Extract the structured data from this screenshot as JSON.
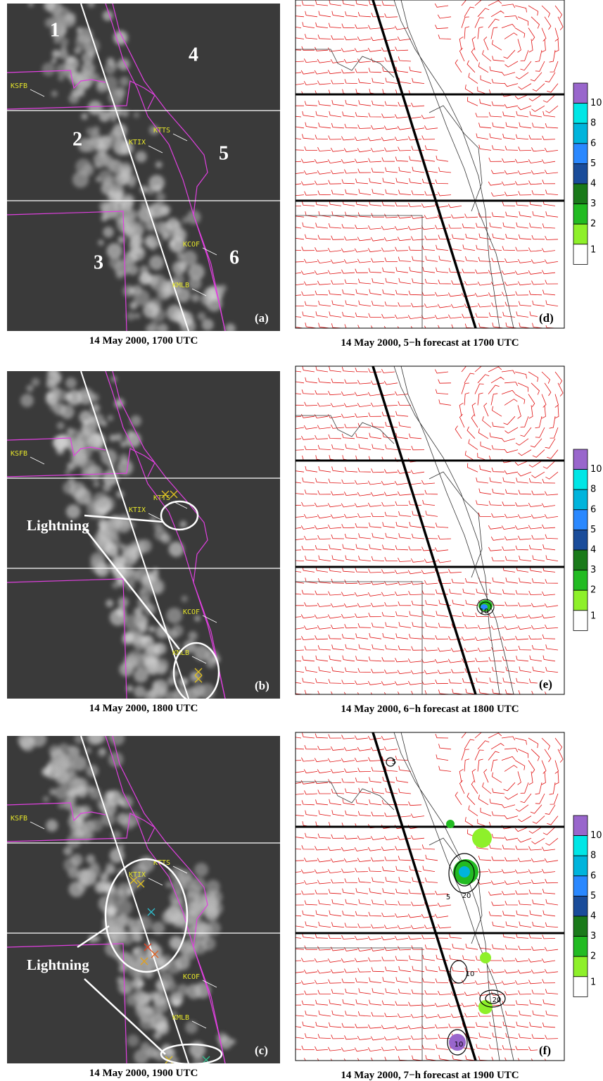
{
  "panels": [
    {
      "letter": "(a)",
      "caption": "14 May 2000, 1700 UTC",
      "regions": [
        "1",
        "2",
        "3",
        "4",
        "5",
        "6"
      ],
      "stations": [
        "KSFB",
        "KTTS",
        "KTIX",
        "KCOF",
        "KMLB"
      ]
    },
    {
      "letter": "(b)",
      "caption": "14 May 2000, 1800 UTC",
      "stations": [
        "KSFB",
        "KTTS",
        "KTIX",
        "KCOF",
        "KMLB"
      ],
      "annotation": "Lightning"
    },
    {
      "letter": "(c)",
      "caption": "14 May 2000, 1900 UTC",
      "stations": [
        "KSFB",
        "KTTS",
        "KTIX",
        "KCOF",
        "KMLB"
      ],
      "annotation": "Lightning"
    },
    {
      "letter": "(d)",
      "caption": "14 May 2000, 5−h forecast at 1700 UTC",
      "colorbar": [
        10,
        8,
        6,
        5,
        4,
        3,
        2,
        1
      ]
    },
    {
      "letter": "(e)",
      "caption": "14 May 2000, 6−h forecast at 1800 UTC",
      "colorbar": [
        10,
        8,
        6,
        5,
        4,
        3,
        2,
        1
      ],
      "contour_labels": [
        "10"
      ]
    },
    {
      "letter": "(f)",
      "caption": "14 May 2000, 7−h forecast at 1900 UTC",
      "colorbar": [
        10,
        8,
        6,
        5,
        4,
        3,
        2,
        1
      ],
      "contour_labels": [
        "5",
        "5",
        "20",
        "10",
        "20",
        "10"
      ]
    }
  ]
}
